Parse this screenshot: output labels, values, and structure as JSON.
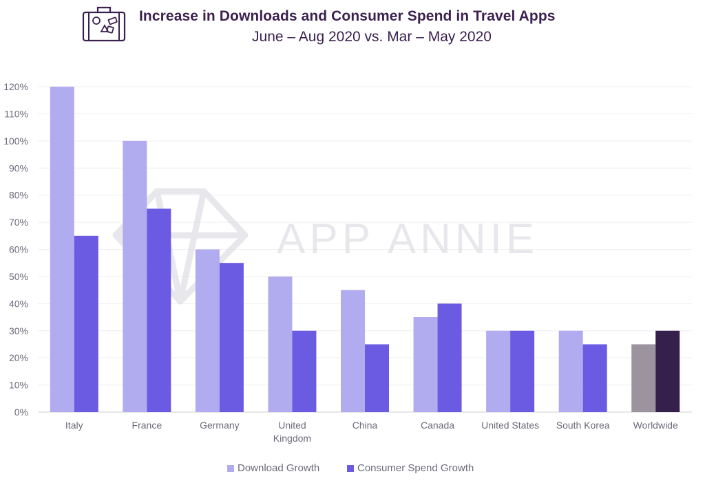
{
  "header": {
    "title": "Increase in Downloads and Consumer Spend in Travel Apps",
    "subtitle": "June – Aug 2020 vs. Mar – May 2020",
    "icon": "suitcase-icon"
  },
  "watermark": {
    "text": "APP ANNIE",
    "icon": "diamond-logo-icon"
  },
  "colors": {
    "download": "#b1abf0",
    "spend": "#6b5ae2",
    "download_worldwide": "#9b939e",
    "spend_worldwide": "#35204b",
    "title": "#3b1f4e"
  },
  "legend": {
    "download_label": "Download Growth",
    "spend_label": "Consumer Spend Growth"
  },
  "chart_data": {
    "type": "bar",
    "categories": [
      [
        "Italy"
      ],
      [
        "France"
      ],
      [
        "Germany"
      ],
      [
        "United",
        "Kingdom"
      ],
      [
        "China"
      ],
      [
        "Canada"
      ],
      [
        "United States"
      ],
      [
        "South Korea"
      ],
      [
        "Worldwide"
      ]
    ],
    "series": [
      {
        "name": "Download Growth",
        "values": [
          120,
          100,
          60,
          50,
          45,
          35,
          30,
          30,
          25
        ]
      },
      {
        "name": "Consumer Spend Growth",
        "values": [
          65,
          75,
          55,
          30,
          25,
          40,
          30,
          25,
          30
        ]
      }
    ],
    "ylim": [
      0,
      120
    ],
    "yticks": [
      "0%",
      "10%",
      "20%",
      "30%",
      "40%",
      "50%",
      "60%",
      "70%",
      "80%",
      "90%",
      "100%",
      "110%",
      "120%"
    ],
    "grid": true,
    "legend_position": "bottom-center"
  }
}
